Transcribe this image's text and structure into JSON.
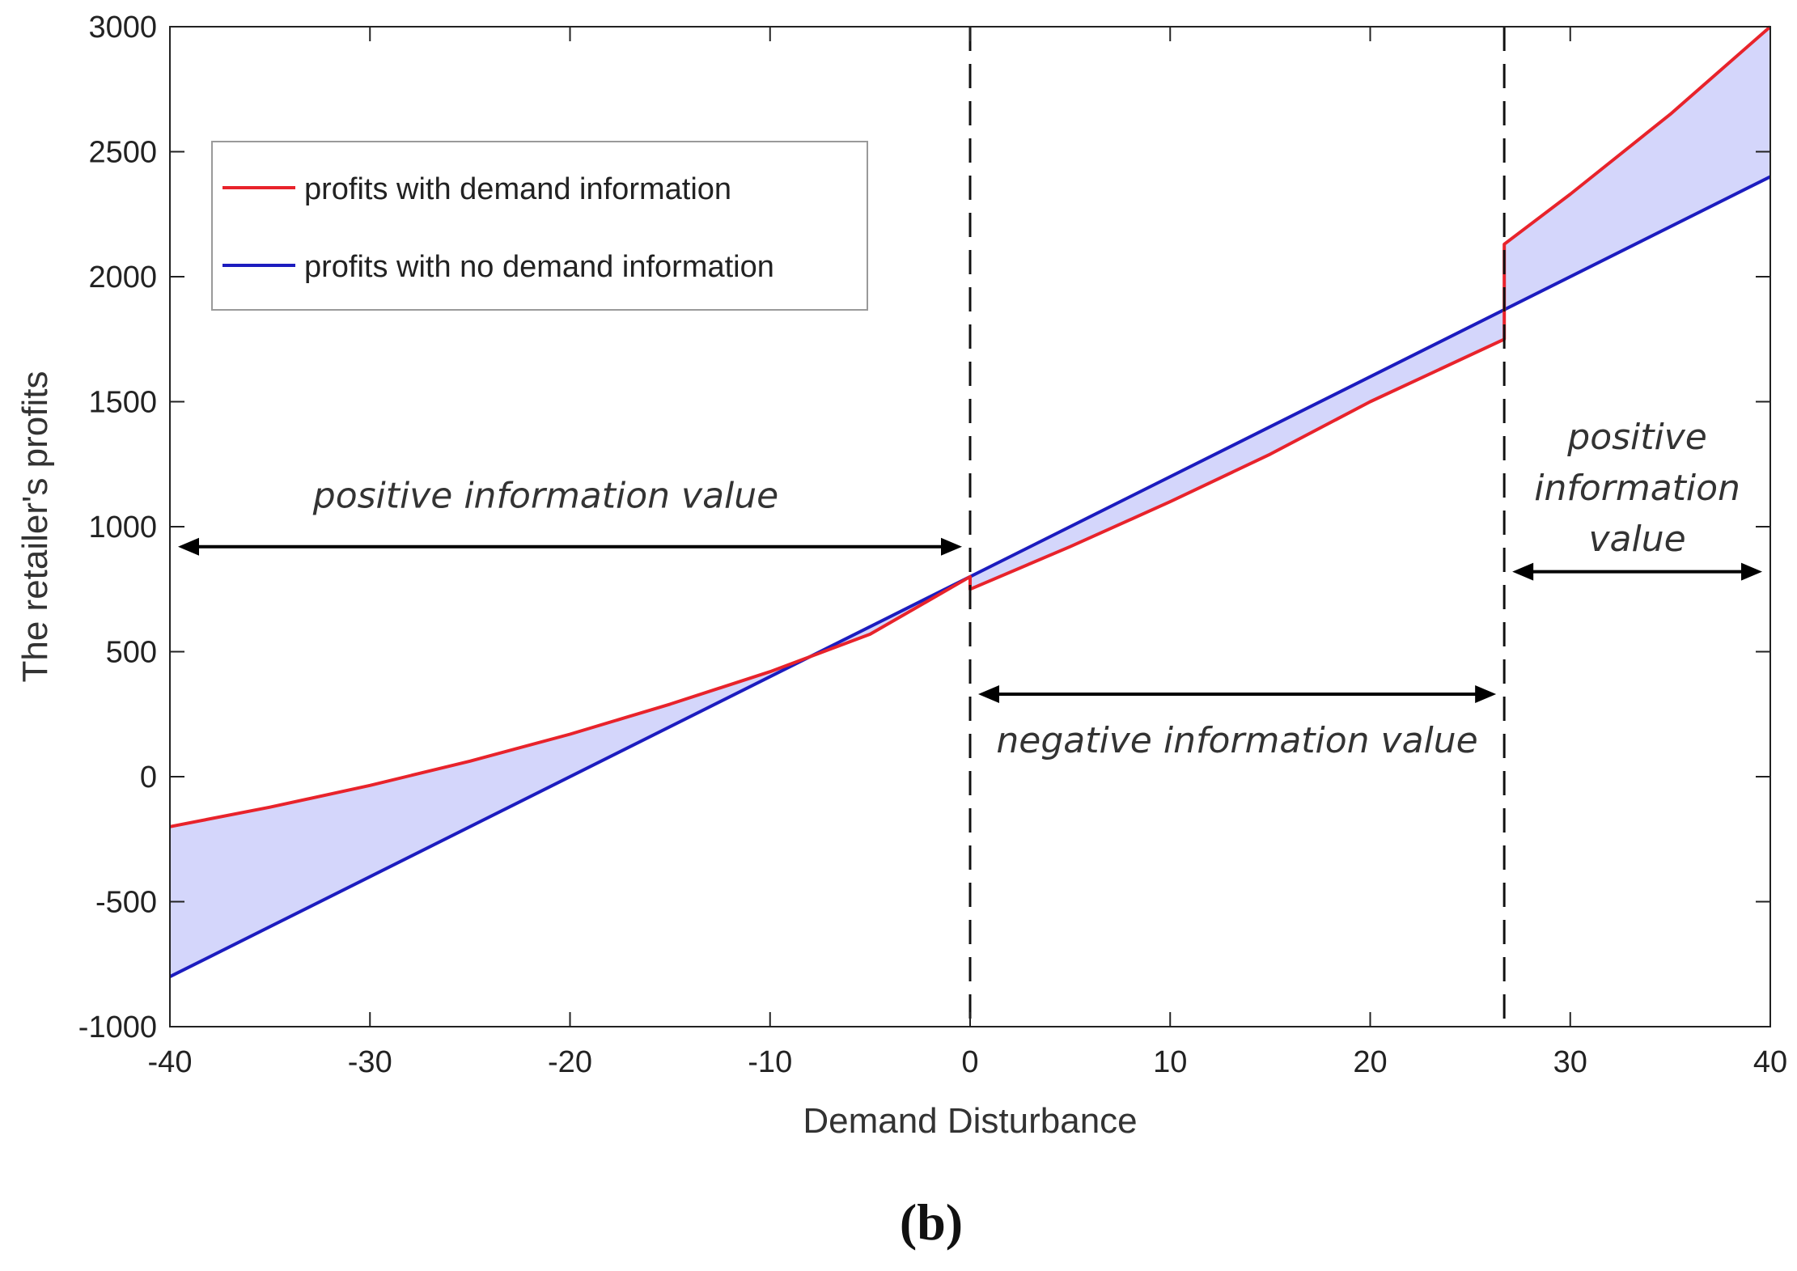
{
  "chart_data": {
    "type": "line",
    "title": "",
    "xlabel": "Demand Disturbance",
    "ylabel": "The retailer's profits",
    "xlim": [
      -40,
      40
    ],
    "ylim": [
      -1000,
      3000
    ],
    "xticks": [
      -40,
      -30,
      -20,
      -10,
      0,
      10,
      20,
      30,
      40
    ],
    "yticks": [
      -1000,
      -500,
      0,
      500,
      1000,
      1500,
      2000,
      2500,
      3000
    ],
    "grid": false,
    "legend_position": "upper-left",
    "series": [
      {
        "name": "profits with demand information",
        "color": "#e8232b",
        "x": [
          -40,
          -35,
          -30,
          -25,
          -20,
          -15,
          -10,
          -5,
          0,
          0,
          5,
          10,
          15,
          20,
          26.7,
          26.7,
          30,
          35,
          40
        ],
        "y": [
          -200,
          -122,
          -35,
          62,
          170,
          290,
          420,
          570,
          800,
          750,
          920,
          1100,
          1290,
          1500,
          1750,
          2130,
          2330,
          2650,
          3000
        ]
      },
      {
        "name": "profits with no demand information",
        "color": "#1c1cbf",
        "x": [
          -40,
          40
        ],
        "y": [
          -800,
          2400
        ]
      }
    ],
    "fill_between": {
      "color": "#d4d6fb"
    },
    "vlines": [
      0,
      26.7
    ],
    "annotations": [
      {
        "text": "positive information value",
        "x_from": -40,
        "x_to": 0,
        "y": 920
      },
      {
        "text": "negative information value",
        "x_from": 0,
        "x_to": 26.7,
        "y": 330
      },
      {
        "lines": [
          "positive",
          "information",
          "value"
        ],
        "x_from": 26.7,
        "x_to": 40,
        "y": 820
      }
    ]
  },
  "caption": "(b)"
}
